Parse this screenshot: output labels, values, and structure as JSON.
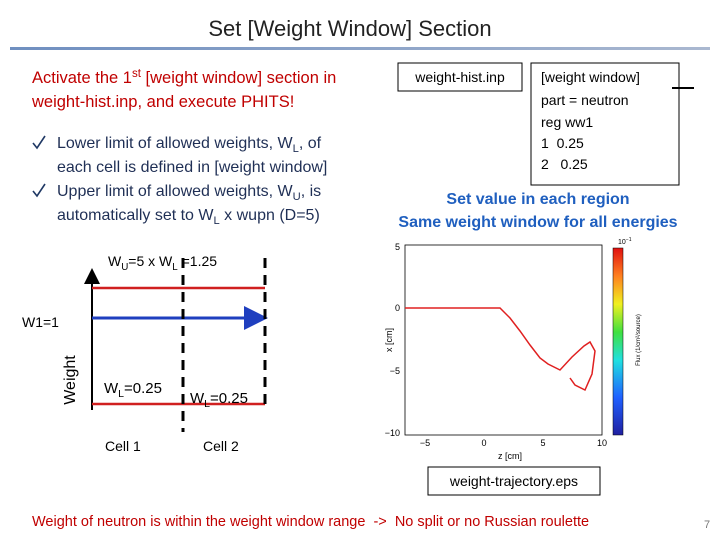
{
  "header": {
    "title": "Set [Weight Window] Section"
  },
  "instruction": {
    "line1": [
      "Activate the 1",
      "st",
      " [weight window] section in"
    ],
    "line2": "weight-hist.inp, and execute PHITS!"
  },
  "bullets": [
    [
      "Lower limit of allowed weights, W",
      "L",
      ", of"
    ],
    [
      "each cell is defined in [weight window]"
    ],
    [
      "Upper limit of allowed weights, W",
      "U",
      ", is"
    ],
    [
      "automatically set to W",
      "L",
      " x wupn (D=5)"
    ]
  ],
  "input_file": "weight-hist.inp",
  "input_box": [
    "[weight window]",
    "part = neutron",
    "reg ww1",
    "1  0.25",
    "2   0.25"
  ],
  "notes": [
    "Set value in each region",
    "Same weight window for all energies"
  ],
  "diagram": {
    "upper_label": [
      "W",
      "U",
      "=5 x W",
      "L",
      " =1.25"
    ],
    "w1": "W1=1",
    "axis_label": "Weight",
    "lower_label_1": [
      "W",
      "L",
      "=0.25"
    ],
    "lower_label_2": [
      "W",
      "L",
      "=0.25"
    ],
    "cells": [
      "Cell 1",
      "Cell 2"
    ]
  },
  "figure": {
    "y_ticks": [
      "5",
      "0",
      "−5",
      "−10"
    ],
    "x_ticks": [
      "−5",
      "0",
      "5",
      "10"
    ],
    "x_label": "z [cm]",
    "y_label": "x [cm]",
    "colorbar_max": [
      "10",
      "−1"
    ],
    "colorbar_label": "Flux (1/cm²/source)",
    "file": "weight-trajectory.eps"
  },
  "footer": {
    "message": "Weight of neutron is within the weight window range  ->  No split or no Russian roulette",
    "page": "7"
  }
}
